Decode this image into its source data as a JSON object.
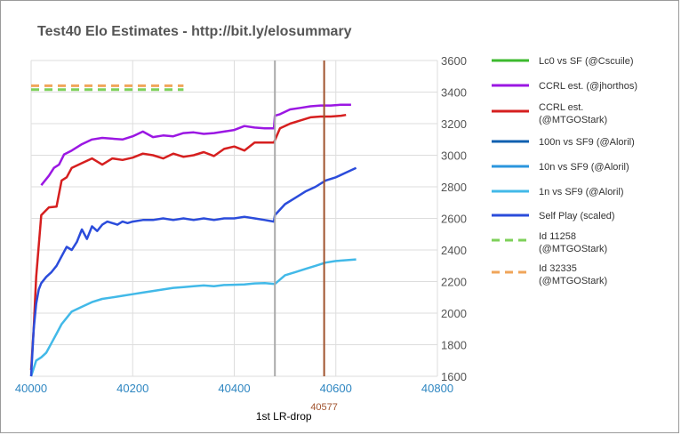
{
  "chart_data": {
    "type": "line",
    "title": "Test40 Elo Estimates - http://bit.ly/elosummary",
    "xlim": [
      40000,
      40800
    ],
    "ylim": [
      1600,
      3600
    ],
    "x_ticks": [
      "40000",
      "40200",
      "40400",
      "40600",
      "40800"
    ],
    "y_ticks": [
      "1600",
      "1800",
      "2000",
      "2200",
      "2400",
      "2600",
      "2800",
      "3000",
      "3200",
      "3400",
      "3600"
    ],
    "legend_position": "right",
    "grid": true,
    "annotations": [
      {
        "label": "1st LR-drop",
        "x": 40480,
        "color": "#aaaaaa"
      },
      {
        "label": "40577",
        "x": 40577,
        "color": "#a0522d"
      }
    ],
    "series": [
      {
        "name": "Lc0 vs SF (@Cscuile)",
        "style": "solid",
        "color": "#3cba2e",
        "x": [],
        "y": []
      },
      {
        "name": "CCRL est. (@jhorthos)",
        "style": "solid",
        "color": "#9b17e3",
        "x": [
          40020,
          40035,
          40045,
          40055,
          40065,
          40080,
          40100,
          40120,
          40140,
          40160,
          40180,
          40200,
          40220,
          40240,
          40260,
          40280,
          40300,
          40320,
          40340,
          40360,
          40380,
          40400,
          40420,
          40440,
          40460,
          40478,
          40480,
          40490,
          40510,
          40530,
          40550,
          40570,
          40590,
          40610,
          40630
        ],
        "y": [
          2810,
          2870,
          2920,
          2940,
          3005,
          3030,
          3070,
          3100,
          3110,
          3105,
          3100,
          3120,
          3150,
          3115,
          3125,
          3120,
          3140,
          3145,
          3135,
          3140,
          3150,
          3160,
          3185,
          3175,
          3170,
          3170,
          3250,
          3260,
          3290,
          3300,
          3310,
          3315,
          3315,
          3320,
          3320
        ]
      },
      {
        "name": "CCRL est. (@MTGOStark)",
        "style": "solid",
        "color": "#d61f1f",
        "x": [
          40000,
          40005,
          40010,
          40020,
          40035,
          40050,
          40060,
          40070,
          40080,
          40100,
          40120,
          40140,
          40160,
          40180,
          40200,
          40220,
          40240,
          40260,
          40280,
          40300,
          40320,
          40340,
          40360,
          40380,
          40400,
          40420,
          40440,
          40460,
          40478,
          40490,
          40510,
          40530,
          40550,
          40570,
          40590,
          40610,
          40620
        ],
        "y": [
          1640,
          1900,
          2230,
          2620,
          2670,
          2675,
          2840,
          2860,
          2920,
          2950,
          2980,
          2940,
          2980,
          2970,
          2985,
          3010,
          3000,
          2980,
          3010,
          2990,
          3000,
          3020,
          2995,
          3040,
          3055,
          3030,
          3080,
          3080,
          3080,
          3170,
          3200,
          3220,
          3240,
          3245,
          3245,
          3250,
          3255
        ]
      },
      {
        "name": "100n vs SF9 (@Aloril)",
        "style": "solid",
        "color": "#1060b0",
        "x": [],
        "y": []
      },
      {
        "name": "10n vs SF9 (@Aloril)",
        "style": "solid",
        "color": "#2b96dd",
        "x": [],
        "y": []
      },
      {
        "name": "1n vs SF9 (@Aloril)",
        "style": "solid",
        "color": "#42b9e8",
        "x": [
          40000,
          40005,
          40010,
          40020,
          40030,
          40040,
          40050,
          40060,
          40070,
          40080,
          40100,
          40120,
          40140,
          40160,
          40180,
          40200,
          40220,
          40240,
          40260,
          40280,
          40300,
          40320,
          40340,
          40360,
          40380,
          40400,
          40420,
          40440,
          40460,
          40480,
          40500,
          40520,
          40540,
          40560,
          40580,
          40600,
          40620,
          40640
        ],
        "y": [
          1600,
          1650,
          1700,
          1720,
          1750,
          1810,
          1870,
          1930,
          1970,
          2010,
          2040,
          2070,
          2090,
          2100,
          2110,
          2120,
          2130,
          2140,
          2150,
          2160,
          2165,
          2170,
          2175,
          2170,
          2178,
          2180,
          2182,
          2188,
          2190,
          2185,
          2240,
          2260,
          2280,
          2300,
          2320,
          2330,
          2335,
          2340
        ]
      },
      {
        "name": "Self Play (scaled)",
        "style": "solid",
        "color": "#2b4cdb",
        "x": [
          40000,
          40005,
          40010,
          40015,
          40020,
          40030,
          40040,
          40050,
          40060,
          40070,
          40080,
          40090,
          40100,
          40110,
          40120,
          40130,
          40140,
          40150,
          40160,
          40170,
          40180,
          40190,
          40200,
          40220,
          40240,
          40260,
          40280,
          40300,
          40320,
          40340,
          40360,
          40380,
          40400,
          40420,
          40440,
          40460,
          40478,
          40480,
          40500,
          40520,
          40540,
          40560,
          40580,
          40600,
          40620,
          40640
        ],
        "y": [
          1600,
          1900,
          2060,
          2150,
          2190,
          2230,
          2260,
          2300,
          2360,
          2420,
          2400,
          2450,
          2530,
          2470,
          2550,
          2520,
          2560,
          2580,
          2570,
          2560,
          2580,
          2570,
          2580,
          2590,
          2590,
          2600,
          2590,
          2600,
          2590,
          2600,
          2590,
          2600,
          2600,
          2610,
          2600,
          2590,
          2580,
          2620,
          2690,
          2730,
          2770,
          2800,
          2840,
          2860,
          2890,
          2920
        ]
      },
      {
        "name": "Id 11258 (@MTGOStark)",
        "style": "dashed",
        "color": "#7ed05a",
        "x": [
          40000,
          40300
        ],
        "y": [
          3415,
          3415
        ]
      },
      {
        "name": "Id 32335 (@MTGOStark)",
        "style": "dashed",
        "color": "#f0a55a",
        "x": [
          40000,
          40300
        ],
        "y": [
          3440,
          3440
        ]
      }
    ]
  }
}
